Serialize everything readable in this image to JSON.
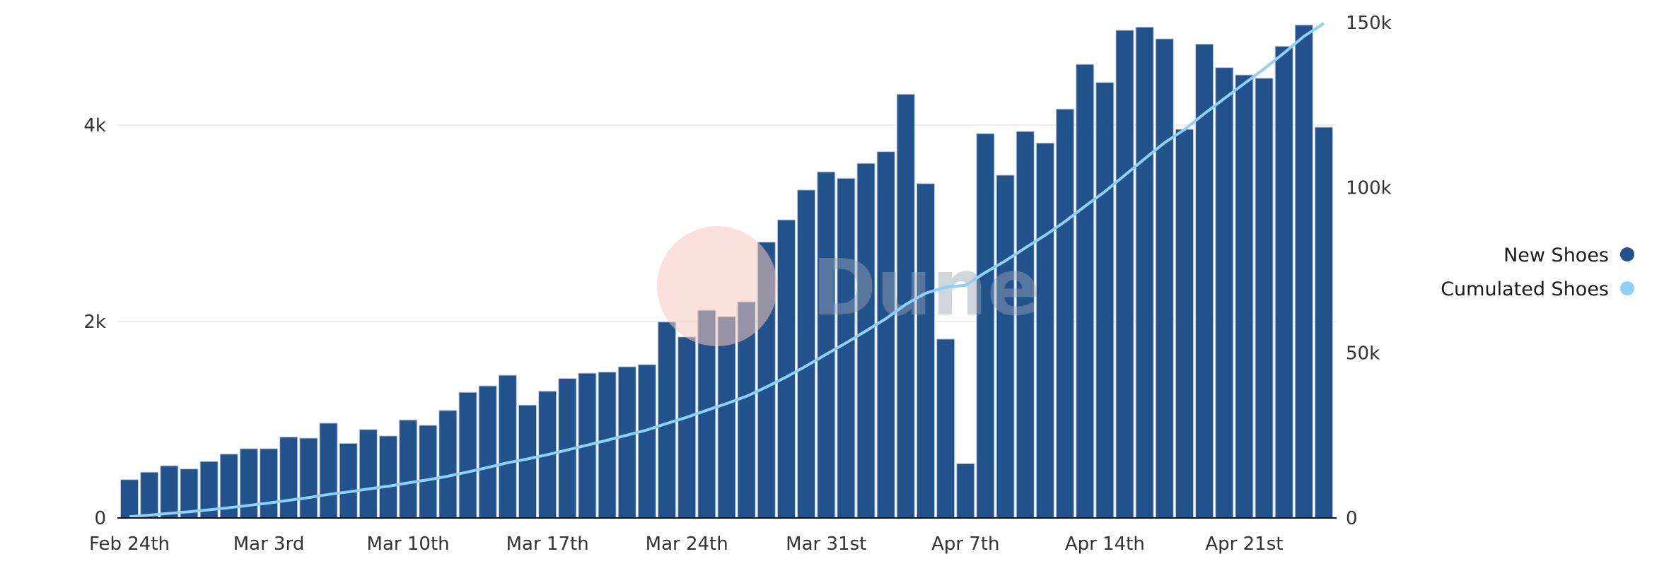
{
  "chart_data": {
    "type": "bar+line",
    "title": "",
    "watermark": "Dune",
    "x_tick_labels": [
      "Feb 24th",
      "Mar 3rd",
      "Mar 10th",
      "Mar 17th",
      "Mar 24th",
      "Mar 31st",
      "Apr 7th",
      "Apr 14th",
      "Apr 21st"
    ],
    "x_tick_indices": [
      0,
      7,
      14,
      21,
      28,
      35,
      42,
      49,
      56
    ],
    "left_axis": {
      "ticks": [
        0,
        2000,
        4000
      ],
      "tick_labels": [
        "0",
        "2k",
        "4k"
      ],
      "ylim": [
        0,
        5200
      ]
    },
    "right_axis": {
      "ticks": [
        0,
        50000,
        100000,
        150000
      ],
      "tick_labels": [
        "0",
        "50k",
        "100k",
        "150k"
      ],
      "ylim": [
        0,
        153000
      ]
    },
    "grid": true,
    "legend_placement": "right",
    "series": [
      {
        "name": "New Shoes",
        "type": "bar",
        "axis": "left",
        "color": "#22528c",
        "values": [
          390,
          466,
          531,
          499,
          575,
          650,
          705,
          705,
          824,
          813,
          965,
          759,
          900,
          835,
          997,
          943,
          1095,
          1279,
          1344,
          1453,
          1149,
          1290,
          1420,
          1474,
          1485,
          1539,
          1561,
          1995,
          1843,
          2114,
          2049,
          2200,
          2808,
          3035,
          3339,
          3523,
          3458,
          3610,
          3729,
          4314,
          3404,
          1821,
          553,
          3913,
          3490,
          3935,
          3816,
          4163,
          4618,
          4434,
          4965,
          4997,
          4878,
          3957,
          4824,
          4585,
          4510,
          4477,
          4802,
          5019,
          3978
        ]
      },
      {
        "name": "Cumulated Shoes",
        "type": "line",
        "axis": "right",
        "color": "#8fd0fb",
        "derived": "cumulative sum of New Shoes"
      }
    ]
  }
}
